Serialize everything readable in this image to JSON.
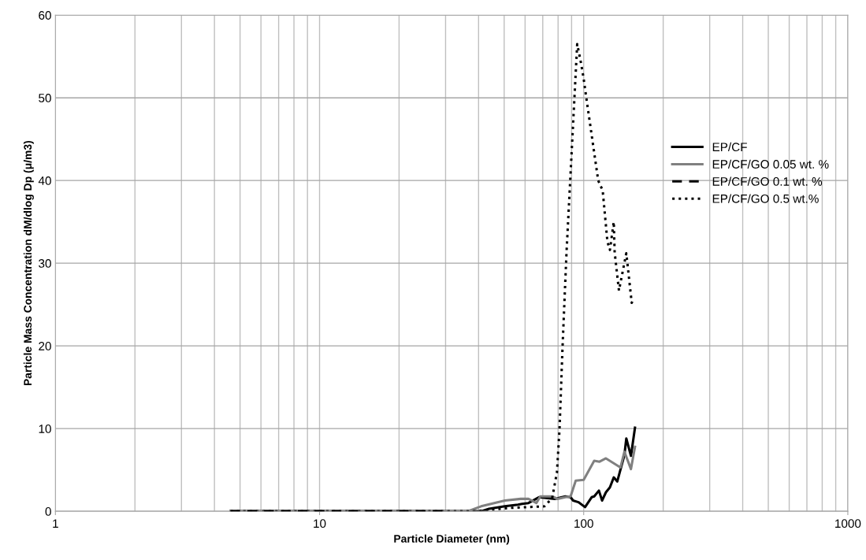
{
  "chart_data": {
    "type": "line",
    "xlabel": "Particle Diameter (nm)",
    "ylabel": "Particle Mass Concentration dM/dlog Dp (μ/m3)",
    "log": "x",
    "xlim": [
      1,
      1000
    ],
    "xticks": [
      1,
      10,
      100,
      1000
    ],
    "ylim": [
      0,
      60
    ],
    "yticks": [
      0,
      10,
      20,
      30,
      40,
      50,
      60
    ],
    "grid": true,
    "legend": "right",
    "series": [
      {
        "name": "EP/CF",
        "color": "#000000",
        "line_style": "solid",
        "x": [
          4.6,
          30,
          40.9,
          43.8,
          50.3,
          56.4,
          58.4,
          61.8,
          67.7,
          77.7,
          85.2,
          89.2,
          91.2,
          95.5,
          101.2,
          107.2,
          109.6,
          114.2,
          117.4,
          121.4,
          125.7,
          130,
          134,
          142.6,
          145,
          151,
          156.4
        ],
        "values": [
          0,
          0,
          0,
          0.3,
          0.6,
          0.8,
          0.9,
          1.0,
          1.7,
          1.5,
          1.8,
          1.7,
          1.3,
          1.1,
          0.5,
          1.7,
          1.8,
          2.5,
          1.3,
          2.3,
          2.9,
          4.1,
          3.6,
          6.8,
          8.8,
          6.7,
          10.1
        ]
      },
      {
        "name": "EP/CF/GO 0.05 wt. %",
        "color": "#808080",
        "line_style": "solid",
        "x": [
          4.6,
          30,
          36.4,
          40.9,
          50.3,
          57.7,
          61.8,
          66.2,
          68.5,
          76,
          79.6,
          85.2,
          89.2,
          93.3,
          100,
          109.6,
          114.8,
          121.4,
          137.8,
          142.6,
          151,
          156.4
        ],
        "values": [
          0,
          0,
          0,
          0.6,
          1.3,
          1.5,
          1.5,
          1.0,
          1.8,
          1.8,
          1.5,
          1.7,
          1.8,
          3.7,
          3.8,
          6.1,
          6.0,
          6.4,
          5.3,
          7.2,
          5.1,
          7.8
        ]
      },
      {
        "name": "EP/CF/GO 0.1 wt. %",
        "color": "#000000",
        "line_style": "dashed",
        "x": [
          4.6,
          30
        ],
        "values": [
          0,
          0
        ]
      },
      {
        "name": "EP/CF/GO 0.5 wt.%",
        "color": "#000000",
        "line_style": "dotted",
        "x": [
          4.6,
          30,
          39,
          52,
          71,
          76,
          79.2,
          81,
          83.2,
          86.1,
          94.5,
          97.7,
          100,
          102.3,
          113.5,
          118,
          123,
          125.7,
          130,
          131,
          136,
          145,
          152,
          154.5
        ],
        "values": [
          0,
          0,
          0,
          0.4,
          0.6,
          1.6,
          4.7,
          9.9,
          20,
          31.3,
          56.5,
          54.2,
          52.3,
          50,
          40,
          38.8,
          32.6,
          31.6,
          35,
          31.3,
          26.7,
          31.2,
          25.2,
          25.7
        ]
      }
    ]
  }
}
